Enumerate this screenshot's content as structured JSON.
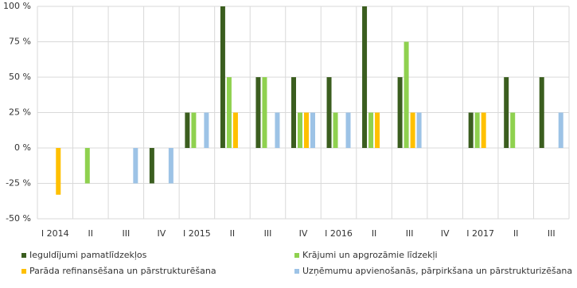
{
  "chart_data": {
    "type": "bar",
    "categories": [
      "I 2014",
      "II",
      "III",
      "IV",
      "I 2015",
      "II",
      "III",
      "IV",
      "I 2016",
      "II",
      "III",
      "IV",
      "I 2017",
      "II",
      "III"
    ],
    "series": [
      {
        "name": "Ieguldījumi pamatlīdzekļos",
        "color": "#3b5e1f",
        "values": [
          0,
          0,
          0,
          -25,
          25,
          100,
          50,
          50,
          50,
          100,
          50,
          0,
          25,
          50,
          50
        ]
      },
      {
        "name": "Krājumi un apgrozāmie līdzekļi",
        "color": "#8fd14f",
        "values": [
          0,
          -25,
          0,
          0,
          25,
          50,
          50,
          25,
          25,
          25,
          75,
          0,
          25,
          25,
          0
        ]
      },
      {
        "name": "Parāda refinansēšana un pārstrukturēšana",
        "color": "#ffc000",
        "values": [
          -33,
          0,
          0,
          0,
          0,
          25,
          0,
          25,
          0,
          25,
          25,
          0,
          25,
          0,
          0
        ]
      },
      {
        "name": "Uzņēmumu apvienošanās, pārpirkšana un pārstrukturizēšana",
        "color": "#9dc3e6",
        "values": [
          0,
          0,
          -25,
          -25,
          25,
          0,
          25,
          25,
          25,
          0,
          25,
          0,
          0,
          0,
          25
        ]
      }
    ],
    "ylim": [
      -50,
      100
    ],
    "yticks": [
      {
        "value": -50,
        "label": "-50 %"
      },
      {
        "value": -25,
        "label": "-25 %"
      },
      {
        "value": 0,
        "label": "0 %"
      },
      {
        "value": 25,
        "label": "25 %"
      },
      {
        "value": 50,
        "label": "50 %"
      },
      {
        "value": 75,
        "label": "75 %"
      },
      {
        "value": 100,
        "label": "100 %"
      }
    ],
    "grid": true
  }
}
